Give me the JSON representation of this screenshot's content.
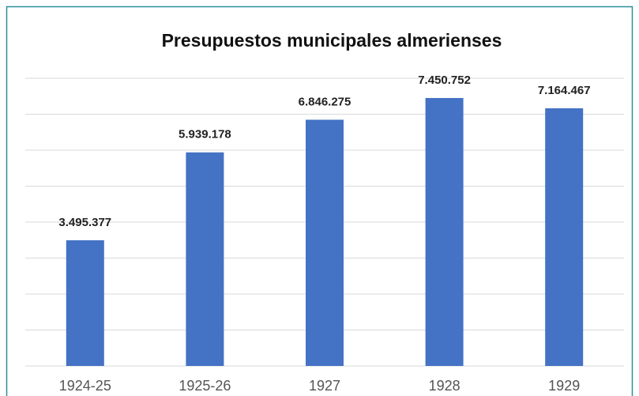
{
  "chart_data": {
    "type": "bar",
    "title": "Presupuestos municipales almerienses",
    "categories": [
      "1924-25",
      "1925-26",
      "1927",
      "1928",
      "1929"
    ],
    "values": [
      3495377,
      5939178,
      6846275,
      7450752,
      7164467
    ],
    "value_labels": [
      "3.495.377",
      "5.939.178",
      "6.846.275",
      "7.450.752",
      "7.164.467"
    ],
    "color": "#4472c4",
    "ylim": [
      0,
      8000000
    ],
    "yticks": [
      0,
      1000000,
      2000000,
      3000000,
      4000000,
      5000000,
      6000000,
      7000000,
      8000000
    ],
    "grid": true
  }
}
